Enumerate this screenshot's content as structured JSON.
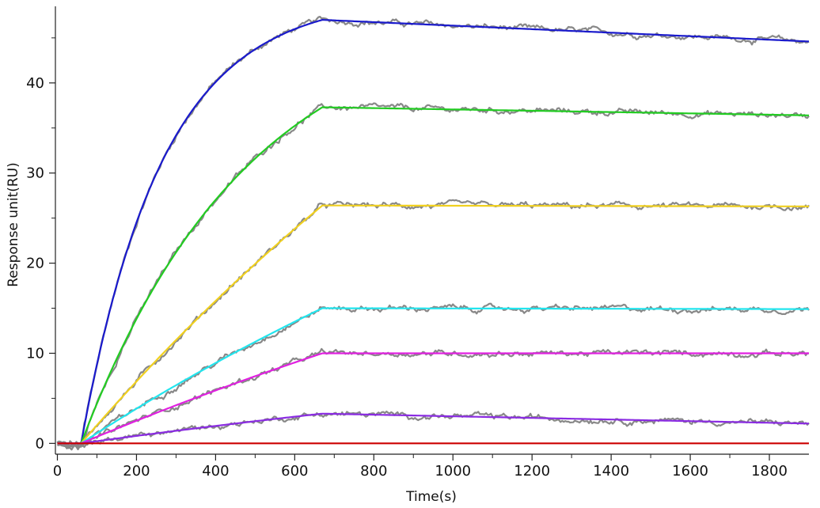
{
  "chart_data": {
    "type": "line",
    "xlabel": "Time(s)",
    "ylabel": "Response unit(RU)",
    "xlim": [
      -5,
      1900
    ],
    "ylim": [
      -1.2,
      48.5
    ],
    "x_ticks": [
      0,
      200,
      400,
      600,
      800,
      1000,
      1200,
      1400,
      1600,
      1800
    ],
    "y_ticks": [
      0,
      10,
      20,
      30,
      40
    ],
    "minor_x_step": 100,
    "minor_y_step": 5,
    "grid": false,
    "injection_start": 60,
    "injection_end": 670,
    "end_time": 1900,
    "series": [
      {
        "color": "#1a1acc",
        "kind": "exp",
        "plateau_at_670": 47.0,
        "tau": 205,
        "end_value": 44.6
      },
      {
        "color": "#22cc22",
        "kind": "exp",
        "plateau_at_670": 37.3,
        "tau": 420,
        "end_value": 36.4
      },
      {
        "color": "#f0d020",
        "kind": "exp",
        "plateau_at_670": 26.4,
        "tau": 1800,
        "end_value": 26.3
      },
      {
        "color": "#22e5ee",
        "kind": "exp",
        "plateau_at_670": 15.0,
        "tau": 2000,
        "end_value": 14.9
      },
      {
        "color": "#e020e0",
        "kind": "exp",
        "plateau_at_670": 10.0,
        "tau": 2500,
        "end_value": 10.0
      },
      {
        "color": "#8a2be2",
        "kind": "exp",
        "plateau_at_670": 3.3,
        "tau": 2500,
        "end_value": 2.2
      },
      {
        "color": "#cc0000",
        "kind": "flat",
        "plateau_at_670": 0,
        "tau": 1,
        "end_value": 0
      }
    ],
    "measured_color": "#888888"
  }
}
